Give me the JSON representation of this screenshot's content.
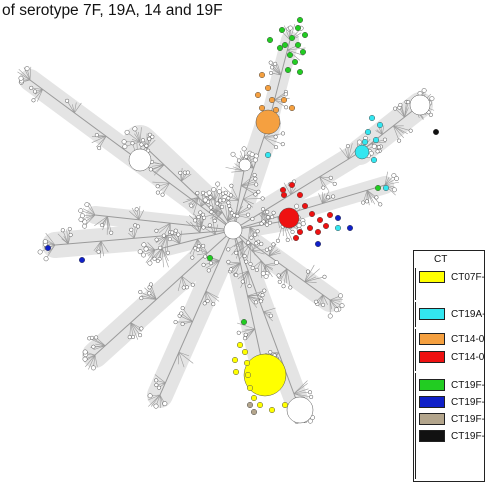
{
  "title": "of serotype 7F, 19A, 14 and 19F",
  "legend": {
    "title": "CT",
    "items": [
      {
        "label": "CT07F-",
        "color": "#ffff00"
      },
      {
        "label": "CT19A-",
        "color": "#33e6f0"
      },
      {
        "label": "CT14-0",
        "color": "#f5a040"
      },
      {
        "label": "CT14-0",
        "color": "#ee1111"
      },
      {
        "label": "CT19F-",
        "color": "#22cc22"
      },
      {
        "label": "CT19F-",
        "color": "#1020c8"
      },
      {
        "label": "CT19F-",
        "color": "#b3a58c"
      },
      {
        "label": "CT19F-",
        "color": "#111111"
      }
    ]
  },
  "colors": {
    "background_halo": "#e4e4e4",
    "branch": "#9a9a9a",
    "node_default": "#ffffff"
  }
}
